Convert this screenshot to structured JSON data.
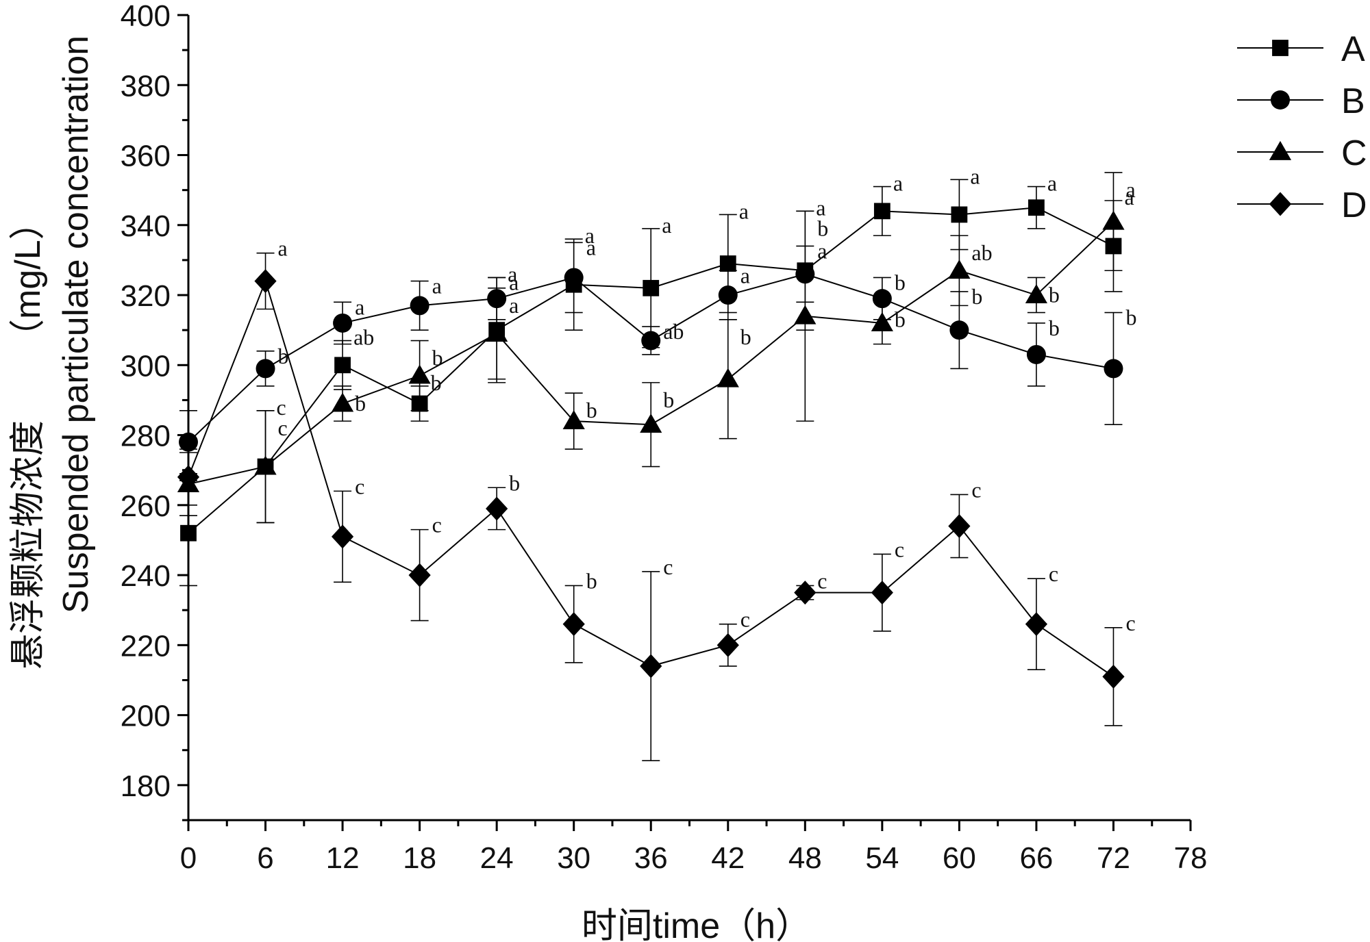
{
  "chart_data": {
    "type": "line",
    "title": "",
    "xlabel": "时间time（h）",
    "ylabel_cn": "悬浮颗粒物浓度",
    "ylabel_en": "Suspended particulate concentration",
    "ylabel_unit": "（mg/L）",
    "xlim": [
      0,
      78
    ],
    "ylim": [
      170,
      400
    ],
    "xticks": [
      0,
      6,
      12,
      18,
      24,
      30,
      36,
      42,
      48,
      54,
      60,
      66,
      72,
      78
    ],
    "xtick_labels": [
      "0",
      "6",
      "12",
      "18",
      "24",
      "30",
      "36",
      "42",
      "48",
      "54",
      "60",
      "66",
      "72",
      "78"
    ],
    "yticks": [
      180,
      200,
      220,
      240,
      260,
      280,
      300,
      320,
      340,
      360,
      380,
      400
    ],
    "ytick_labels": [
      "180",
      "200",
      "220",
      "240",
      "260",
      "280",
      "300",
      "320",
      "340",
      "360",
      "380",
      "400"
    ],
    "legend_position": "top-right",
    "x": [
      0,
      6,
      12,
      18,
      24,
      30,
      36,
      42,
      48,
      54,
      60,
      66,
      72
    ],
    "series": [
      {
        "name": "A",
        "marker": "square",
        "values": [
          252,
          271,
          300,
          289,
          310,
          323,
          322,
          329,
          327,
          344,
          343,
          345,
          334
        ],
        "errors": [
          15,
          16,
          7,
          5,
          15,
          13,
          17,
          14,
          17,
          7,
          10,
          6,
          13
        ],
        "labels": [
          "",
          "c",
          "ab",
          "b",
          "a",
          "a",
          "a",
          "a",
          "a",
          "a",
          "a",
          "a",
          "a"
        ]
      },
      {
        "name": "B",
        "marker": "circle",
        "values": [
          278,
          299,
          312,
          317,
          319,
          325,
          307,
          320,
          326,
          319,
          310,
          303,
          299
        ],
        "errors": [
          9,
          5,
          6,
          7,
          6,
          10,
          4,
          7,
          8,
          6,
          11,
          9,
          16
        ],
        "labels": [
          "",
          "b",
          "a",
          "a",
          "a",
          "a",
          "ab",
          "a",
          "a",
          "b",
          "b",
          "b",
          "b"
        ]
      },
      {
        "name": "C",
        "marker": "triangle",
        "values": [
          266,
          271,
          289,
          297,
          309,
          284,
          283,
          296,
          314,
          312,
          327,
          320,
          341
        ],
        "errors": [
          9,
          16,
          5,
          10,
          13,
          8,
          12,
          17,
          30,
          6,
          10,
          5,
          14
        ],
        "labels": [
          "",
          "c",
          "b",
          "b",
          "a",
          "b",
          "b",
          "b",
          "b",
          "b",
          "ab",
          "b",
          "a"
        ]
      },
      {
        "name": "D",
        "marker": "diamond",
        "values": [
          268,
          324,
          251,
          240,
          259,
          226,
          214,
          220,
          235,
          235,
          254,
          226,
          211
        ],
        "errors": [
          8,
          8,
          13,
          13,
          6,
          11,
          27,
          6,
          2,
          11,
          9,
          13,
          14
        ],
        "labels": [
          "",
          "a",
          "c",
          "c",
          "b",
          "b",
          "c",
          "c",
          "c",
          "c",
          "c",
          "c",
          "c"
        ]
      }
    ]
  }
}
